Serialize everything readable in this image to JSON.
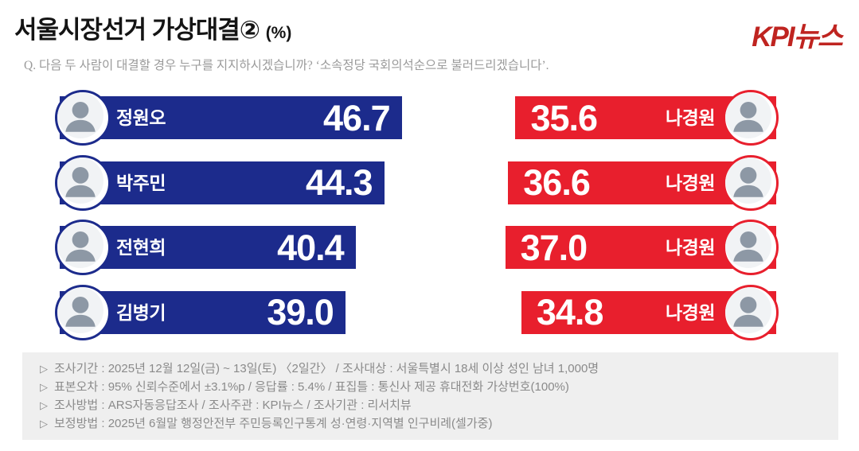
{
  "header": {
    "title": "서울시장선거 가상대결②",
    "title_unit": "(%)",
    "logo": "KPI뉴스",
    "question": "Q. 다음 두 사람이 대결할 경우 누구를 지지하시겠습니까? ‘소속정당 국회의석순으로 불러드리겠습니다’."
  },
  "chart_data": {
    "type": "bar",
    "title": "서울시장선거 가상대결② (%)",
    "unit": "%",
    "orientation": "horizontal-paired",
    "legend_position": "none",
    "grid": false,
    "matchups": [
      {
        "left": {
          "name": "정원오",
          "value": 46.7
        },
        "right": {
          "name": "나경원",
          "value": 35.6
        }
      },
      {
        "left": {
          "name": "박주민",
          "value": 44.3
        },
        "right": {
          "name": "나경원",
          "value": 36.6
        }
      },
      {
        "left": {
          "name": "전현희",
          "value": 40.4
        },
        "right": {
          "name": "나경원",
          "value": 37.0
        }
      },
      {
        "left": {
          "name": "김병기",
          "value": 39.0
        },
        "right": {
          "name": "나경원",
          "value": 34.8
        }
      }
    ],
    "colors": {
      "left_bar": "#1c2b8c",
      "right_bar": "#e81f2d",
      "value_text": "#ffffff"
    }
  },
  "footer": {
    "bullet": "▷",
    "lines": [
      "조사기간 : 2025년 12월 12일(금) ~ 13일(토) 〈2일간〉 / 조사대상 : 서울특별시 18세 이상 성인 남녀 1,000명",
      "표본오차 : 95% 신뢰수준에서 ±3.1%p / 응답률 : 5.4% / 표집틀 : 통신사 제공 휴대전화 가상번호(100%)",
      "조사방법 : ARS자동응답조사 / 조사주관 : KPI뉴스 / 조사기관 : 리서치뷰",
      "보정방법 : 2025년 6월말 행정안전부 주민등록인구통계 성·연령·지역별 인구비례(셀가중)"
    ]
  }
}
